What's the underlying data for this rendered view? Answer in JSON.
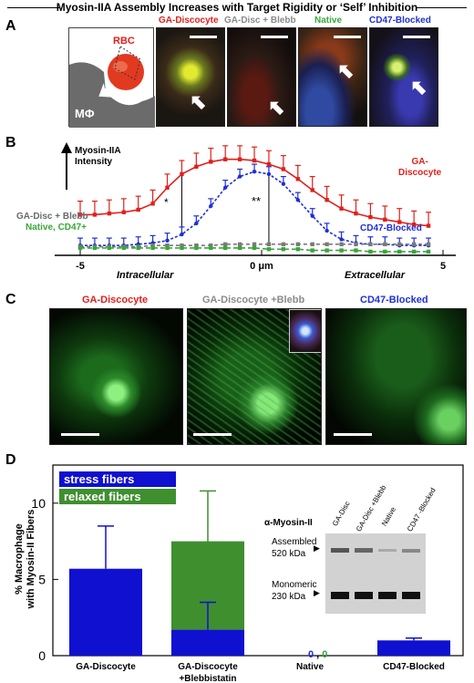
{
  "figure": {
    "title": "Myosin-IIA Assembly Increases with Target Rigidity or ‘Self’ Inhibition",
    "panel_labels": [
      "A",
      "B",
      "C",
      "D"
    ]
  },
  "panel_a": {
    "schematic": {
      "rbc_label": "RBC",
      "macrophage_label": "MΦ"
    },
    "images": [
      {
        "label": "GA-Discocyte",
        "color": "#e0201b"
      },
      {
        "label": "GA-Disc + Blebb",
        "color": "#8a8a8a"
      },
      {
        "label": "Native",
        "color": "#3aa63a"
      },
      {
        "label": "CD47-Blocked",
        "color": "#1f2fd6"
      }
    ]
  },
  "panel_b": {
    "ylabel": "Myosin-IIA\nIntensity",
    "xlabel_left": "Intracellular",
    "xlabel_right": "Extracellular",
    "x_unit_label": "0 μm",
    "x_ticks": [
      "-5",
      "0 μm",
      "5"
    ],
    "significance": [
      "*",
      "**"
    ],
    "series_labels": {
      "ga_discocyte": "GA-\nDiscocyte",
      "ga_disc_blebb": "GA-Disc + Blebb",
      "native_cd47": "Native, CD47+",
      "cd47_blocked": "CD47-Blocked"
    },
    "colors": {
      "ga": "#e0201b",
      "blebb": "#7a7a7a",
      "native": "#3aa63a",
      "cd47": "#1f2fd6"
    }
  },
  "chart_data_b": {
    "type": "line",
    "x": [
      -5,
      -4.6,
      -4.2,
      -3.8,
      -3.4,
      -3.0,
      -2.6,
      -2.2,
      -1.8,
      -1.4,
      -1.0,
      -0.6,
      -0.2,
      0.2,
      0.6,
      1.0,
      1.4,
      1.8,
      2.2,
      2.6,
      3.0,
      3.4,
      3.8,
      4.2,
      4.6
    ],
    "series": [
      {
        "name": "GA-Discocyte",
        "values": [
          0.33,
          0.33,
          0.34,
          0.35,
          0.37,
          0.42,
          0.55,
          0.66,
          0.72,
          0.76,
          0.78,
          0.78,
          0.77,
          0.74,
          0.7,
          0.62,
          0.53,
          0.45,
          0.38,
          0.34,
          0.31,
          0.29,
          0.27,
          0.25,
          0.24
        ]
      },
      {
        "name": "CD47-Blocked",
        "values": [
          0.08,
          0.08,
          0.08,
          0.08,
          0.09,
          0.1,
          0.12,
          0.17,
          0.26,
          0.4,
          0.55,
          0.64,
          0.68,
          0.66,
          0.58,
          0.45,
          0.32,
          0.2,
          0.13,
          0.1,
          0.09,
          0.09,
          0.08,
          0.08,
          0.08
        ]
      },
      {
        "name": "GA-Disc + Blebb",
        "values": [
          0.07,
          0.07,
          0.07,
          0.07,
          0.07,
          0.08,
          0.08,
          0.08,
          0.08,
          0.08,
          0.09,
          0.09,
          0.09,
          0.09,
          0.09,
          0.09,
          0.09,
          0.09,
          0.09,
          0.09,
          0.09,
          0.09,
          0.09,
          0.09,
          0.09
        ]
      },
      {
        "name": "Native, CD47+",
        "values": [
          0.06,
          0.06,
          0.06,
          0.06,
          0.06,
          0.06,
          0.06,
          0.06,
          0.06,
          0.06,
          0.06,
          0.06,
          0.06,
          0.05,
          0.05,
          0.05,
          0.04,
          0.04,
          0.04,
          0.04,
          0.03,
          0.03,
          0.03,
          0.03,
          0.03
        ]
      }
    ],
    "xlim": [
      -5.5,
      5.5
    ],
    "ylim": [
      0,
      1
    ]
  },
  "panel_c": {
    "images": [
      {
        "label": "GA-Discocyte",
        "color": "#e0201b"
      },
      {
        "label": "GA-Discocyte +Blebb",
        "color": "#8a8a8a"
      },
      {
        "label": "CD47-Blocked",
        "color": "#1f2fd6"
      }
    ]
  },
  "panel_d": {
    "ylabel": "% Macrophage\nwith Myosin-II Fibers",
    "legend": [
      {
        "label": "stress fibers",
        "color": "#1010d0"
      },
      {
        "label": "relaxed fibers",
        "color": "#3f8f2f"
      }
    ],
    "zero_label_native": "0 , 0",
    "western": {
      "title": "α-Myosin-II",
      "lanes": [
        "GA-Disc",
        "GA-Disc +Blebb",
        "Native",
        "CD47 -Blocked"
      ],
      "band_labels": [
        "Assembled\n520 kDa",
        "Monomeric\n230 kDa"
      ]
    }
  },
  "chart_data": {
    "type": "bar",
    "categories": [
      "GA-Discocyte",
      "GA-Discocyte\n+Blebbistatin",
      "Native",
      "CD47-Blocked"
    ],
    "series": [
      {
        "name": "stress fibers",
        "values": [
          5.7,
          1.7,
          0,
          1.0
        ],
        "errors": [
          2.8,
          1.8,
          0,
          0.15
        ]
      },
      {
        "name": "relaxed fibers",
        "values": [
          0,
          5.8,
          0,
          0
        ],
        "errors": [
          0,
          3.3,
          0,
          0
        ]
      }
    ],
    "yticks": [
      0,
      5,
      10
    ],
    "ylim": [
      0,
      12.5
    ]
  }
}
